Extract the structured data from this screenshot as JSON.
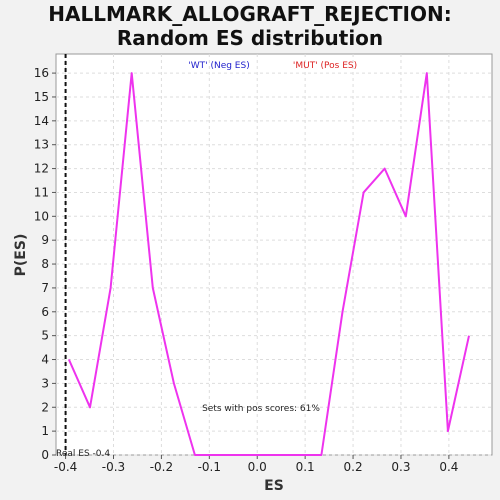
{
  "chart_data": {
    "type": "line",
    "title_line1": "HALLMARK_ALLOGRAFT_REJECTION:",
    "title_line2": "Random ES distribution",
    "xlabel": "ES",
    "ylabel": "P(ES)",
    "xlim": [
      -0.42,
      0.49
    ],
    "ylim": [
      0,
      16.8
    ],
    "x_ticks": [
      -0.4,
      -0.3,
      -0.2,
      -0.1,
      0.0,
      0.1,
      0.2,
      0.3,
      0.4
    ],
    "x_tick_labels": [
      "-0.4",
      "-0.3",
      "-0.2",
      "-0.1",
      "0.0",
      "0.1",
      "0.2",
      "0.3",
      "0.4"
    ],
    "y_ticks": [
      0,
      1,
      2,
      3,
      4,
      5,
      6,
      7,
      8,
      9,
      10,
      11,
      12,
      13,
      14,
      15,
      16
    ],
    "grid": true,
    "series": [
      {
        "color": "#ee33ee",
        "x": [
          -0.393,
          -0.349,
          -0.306,
          -0.262,
          -0.218,
          -0.174,
          -0.13,
          -0.086,
          -0.042,
          0.002,
          0.046,
          0.09,
          0.134,
          0.178,
          0.222,
          0.266,
          0.31,
          0.354,
          0.398,
          0.442
        ],
        "y": [
          4,
          2,
          7,
          16,
          7,
          3,
          0,
          0,
          0,
          0,
          0,
          0,
          0,
          6,
          11,
          12,
          10,
          16,
          1,
          5
        ]
      }
    ],
    "real_es": -0.4,
    "legend": {
      "neg": {
        "text": "'WT' (Neg ES)",
        "color": "#2222cc"
      },
      "pos": {
        "text": "'MUT' (Pos ES)",
        "color": "#dd2222"
      }
    },
    "annotations": {
      "pos_scores": "Sets with pos scores: 61%",
      "real_es": "Real ES -0.4"
    }
  }
}
